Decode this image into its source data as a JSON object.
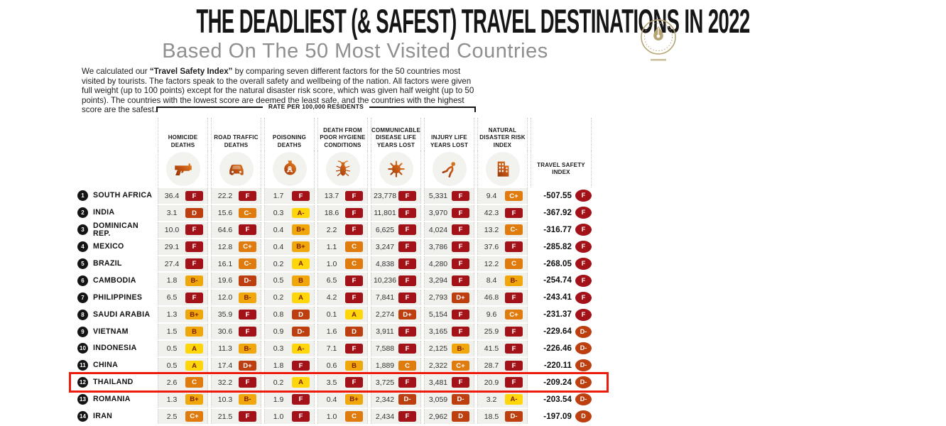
{
  "intro": {
    "pre": "We calculated our ",
    "bold": "“Travel Safety Index”",
    "post": " by comparing seven different factors for the 50 countries most visited by tourists. The factors speak to the overall safety and wellbeing of the nation. All factors were given full weight (up to 100 points) except for the natural disaster risk score, which was given half weight (up to 50 points). The countries with the lowest score are deemed the least safe, and the countries with the highest score are the safest."
  },
  "grade_colors": {
    "A": {
      "bg": "#ffd60a",
      "fg": "#7b1d00"
    },
    "B": {
      "bg": "#efa70b",
      "fg": "#7b1d00"
    },
    "C": {
      "bg": "#e07c0e",
      "fg": "#ffffff"
    },
    "D": {
      "bg": "#bd3f10",
      "fg": "#ffffff"
    },
    "F": {
      "bg": "#a31218",
      "fg": "#ffffff"
    }
  },
  "icons": [
    "gun-icon",
    "car-icon",
    "poison-bottle-icon",
    "cockroach-icon",
    "virus-icon",
    "falling-person-icon",
    "building-icon"
  ],
  "chart_data": {
    "type": "table",
    "title": "THE DEADLIEST (& SAFEST) TRAVEL DESTINATIONS IN 2022",
    "subtitle": "Based On The 50 Most Visited Countries",
    "unit_note": "RATE PER 100,000 RESIDENTS",
    "columns": [
      "HOMICIDE DEATHS",
      "ROAD TRAFFIC DEATHS",
      "POISONING DEATHS",
      "DEATH FROM POOR HYGIENE CONDITIONS",
      "COMMUNICABLE DISEASE LIFE YEARS LOST",
      "INJURY LIFE YEARS LOST",
      "NATURAL DISASTER RISK INDEX"
    ],
    "score_column": "TRAVEL SAFETY INDEX",
    "rows": [
      {
        "rank": "1",
        "country": "SOUTH AFRICA",
        "cells": [
          [
            "36.4",
            "F"
          ],
          [
            "22.2",
            "F"
          ],
          [
            "1.7",
            "F"
          ],
          [
            "13.7",
            "F"
          ],
          [
            "23,778",
            "F"
          ],
          [
            "5,331",
            "F"
          ],
          [
            "9.4",
            "C+"
          ]
        ],
        "score": "-507.55",
        "score_grade": "F",
        "highlighted": false
      },
      {
        "rank": "2",
        "country": "INDIA",
        "cells": [
          [
            "3.1",
            "D"
          ],
          [
            "15.6",
            "C-"
          ],
          [
            "0.3",
            "A-"
          ],
          [
            "18.6",
            "F"
          ],
          [
            "11,801",
            "F"
          ],
          [
            "3,970",
            "F"
          ],
          [
            "42.3",
            "F"
          ]
        ],
        "score": "-367.92",
        "score_grade": "F",
        "highlighted": false
      },
      {
        "rank": "3",
        "country": "DOMINICAN REP.",
        "cells": [
          [
            "10.0",
            "F"
          ],
          [
            "64.6",
            "F"
          ],
          [
            "0.4",
            "B+"
          ],
          [
            "2.2",
            "F"
          ],
          [
            "6,625",
            "F"
          ],
          [
            "4,024",
            "F"
          ],
          [
            "13.2",
            "C-"
          ]
        ],
        "score": "-316.77",
        "score_grade": "F",
        "highlighted": false
      },
      {
        "rank": "4",
        "country": "MEXICO",
        "cells": [
          [
            "29.1",
            "F"
          ],
          [
            "12.8",
            "C+"
          ],
          [
            "0.4",
            "B+"
          ],
          [
            "1.1",
            "C"
          ],
          [
            "3,247",
            "F"
          ],
          [
            "3,786",
            "F"
          ],
          [
            "37.6",
            "F"
          ]
        ],
        "score": "-285.82",
        "score_grade": "F",
        "highlighted": false
      },
      {
        "rank": "5",
        "country": "BRAZIL",
        "cells": [
          [
            "27.4",
            "F"
          ],
          [
            "16.1",
            "C-"
          ],
          [
            "0.2",
            "A"
          ],
          [
            "1.0",
            "C"
          ],
          [
            "4,838",
            "F"
          ],
          [
            "4,280",
            "F"
          ],
          [
            "12.2",
            "C"
          ]
        ],
        "score": "-268.05",
        "score_grade": "F",
        "highlighted": false
      },
      {
        "rank": "6",
        "country": "CAMBODIA",
        "cells": [
          [
            "1.8",
            "B-"
          ],
          [
            "19.6",
            "D-"
          ],
          [
            "0.5",
            "B"
          ],
          [
            "6.5",
            "F"
          ],
          [
            "10,236",
            "F"
          ],
          [
            "3,294",
            "F"
          ],
          [
            "8.4",
            "B-"
          ]
        ],
        "score": "-254.74",
        "score_grade": "F",
        "highlighted": false
      },
      {
        "rank": "7",
        "country": "PHILIPPINES",
        "cells": [
          [
            "6.5",
            "F"
          ],
          [
            "12.0",
            "B-"
          ],
          [
            "0.2",
            "A"
          ],
          [
            "4.2",
            "F"
          ],
          [
            "7,841",
            "F"
          ],
          [
            "2,793",
            "D+"
          ],
          [
            "46.8",
            "F"
          ]
        ],
        "score": "-243.41",
        "score_grade": "F",
        "highlighted": false
      },
      {
        "rank": "8",
        "country": "SAUDI ARABIA",
        "cells": [
          [
            "1.3",
            "B+"
          ],
          [
            "35.9",
            "F"
          ],
          [
            "0.8",
            "D"
          ],
          [
            "0.1",
            "A"
          ],
          [
            "2,274",
            "D+"
          ],
          [
            "5,154",
            "F"
          ],
          [
            "9.6",
            "C+"
          ]
        ],
        "score": "-231.37",
        "score_grade": "F",
        "highlighted": false
      },
      {
        "rank": "9",
        "country": "VIETNAM",
        "cells": [
          [
            "1.5",
            "B"
          ],
          [
            "30.6",
            "F"
          ],
          [
            "0.9",
            "D-"
          ],
          [
            "1.6",
            "D"
          ],
          [
            "3,911",
            "F"
          ],
          [
            "3,165",
            "F"
          ],
          [
            "25.9",
            "F"
          ]
        ],
        "score": "-229.64",
        "score_grade": "D-",
        "highlighted": false
      },
      {
        "rank": "10",
        "country": "INDONESIA",
        "cells": [
          [
            "0.5",
            "A"
          ],
          [
            "11.3",
            "B-"
          ],
          [
            "0.3",
            "A-"
          ],
          [
            "7.1",
            "F"
          ],
          [
            "7,588",
            "F"
          ],
          [
            "2,125",
            "B-"
          ],
          [
            "41.5",
            "F"
          ]
        ],
        "score": "-226.46",
        "score_grade": "D-",
        "highlighted": false
      },
      {
        "rank": "11",
        "country": "CHINA",
        "cells": [
          [
            "0.5",
            "A"
          ],
          [
            "17.4",
            "D+"
          ],
          [
            "1.8",
            "F"
          ],
          [
            "0.6",
            "B"
          ],
          [
            "1,889",
            "C"
          ],
          [
            "2,322",
            "C+"
          ],
          [
            "28.7",
            "F"
          ]
        ],
        "score": "-220.11",
        "score_grade": "D-",
        "highlighted": false
      },
      {
        "rank": "12",
        "country": "THAILAND",
        "cells": [
          [
            "2.6",
            "C"
          ],
          [
            "32.2",
            "F"
          ],
          [
            "0.2",
            "A"
          ],
          [
            "3.5",
            "F"
          ],
          [
            "3,725",
            "F"
          ],
          [
            "3,481",
            "F"
          ],
          [
            "20.9",
            "F"
          ]
        ],
        "score": "-209.24",
        "score_grade": "D-",
        "highlighted": true
      },
      {
        "rank": "13",
        "country": "ROMANIA",
        "cells": [
          [
            "1.3",
            "B+"
          ],
          [
            "10.3",
            "B-"
          ],
          [
            "1.9",
            "F"
          ],
          [
            "0.4",
            "B+"
          ],
          [
            "2,342",
            "D-"
          ],
          [
            "3,059",
            "D-"
          ],
          [
            "3.2",
            "A-"
          ]
        ],
        "score": "-203.54",
        "score_grade": "D-",
        "highlighted": false
      },
      {
        "rank": "14",
        "country": "IRAN",
        "cells": [
          [
            "2.5",
            "C+"
          ],
          [
            "21.5",
            "F"
          ],
          [
            "1.0",
            "F"
          ],
          [
            "1.0",
            "C"
          ],
          [
            "2,434",
            "F"
          ],
          [
            "2,962",
            "D"
          ],
          [
            "18.5",
            "D-"
          ]
        ],
        "score": "-197.09",
        "score_grade": "D",
        "highlighted": false
      }
    ]
  }
}
